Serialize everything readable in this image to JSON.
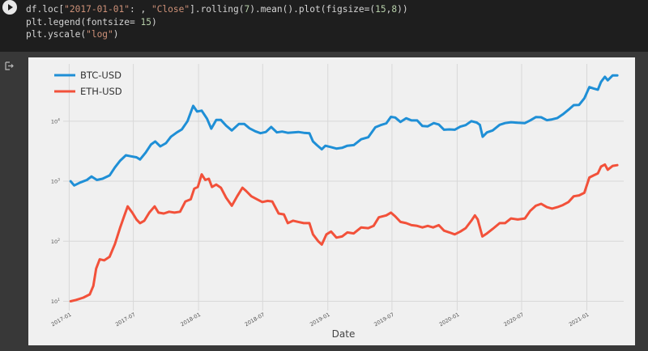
{
  "code_lines": [
    [
      {
        "t": "df.loc["
      },
      {
        "t": "\"2017-01-01\"",
        "c": "tk-str"
      },
      {
        "t": ": , "
      },
      {
        "t": "\"Close\"",
        "c": "tk-str"
      },
      {
        "t": "].rolling("
      },
      {
        "t": "7",
        "c": "tk-num"
      },
      {
        "t": ").mean().plot(figsize=("
      },
      {
        "t": "15",
        "c": "tk-num"
      },
      {
        "t": ","
      },
      {
        "t": "8",
        "c": "tk-num"
      },
      {
        "t": "))"
      }
    ],
    [
      {
        "t": "plt.legend(fontsize= "
      },
      {
        "t": "15",
        "c": "tk-num"
      },
      {
        "t": ")"
      }
    ],
    [
      {
        "t": "plt.yscale("
      },
      {
        "t": "\"log\"",
        "c": "tk-str"
      },
      {
        "t": ")"
      }
    ]
  ],
  "colors": {
    "btc": "#1f8fd6",
    "eth": "#f2513a",
    "grid": "#d8d8d8"
  },
  "icons": {
    "run": "play-circle-icon",
    "output": "output-arrow-icon"
  },
  "chart_data": {
    "type": "line",
    "xlabel": "Date",
    "ylabel": "",
    "yscale": "log",
    "ylim": [
      7,
      90000
    ],
    "xlim": [
      "2016-12-15",
      "2021-04-15"
    ],
    "grid": true,
    "legend_position": "top-left",
    "yticks": [
      {
        "value": 10,
        "label": "10",
        "sup": "1"
      },
      {
        "value": 100,
        "label": "10",
        "sup": "2"
      },
      {
        "value": 1000,
        "label": "10",
        "sup": "3"
      },
      {
        "value": 10000,
        "label": "10",
        "sup": "4"
      }
    ],
    "xticks": [
      "2017-01",
      "2017-07",
      "2018-01",
      "2018-07",
      "2019-01",
      "2019-07",
      "2020-01",
      "2020-07",
      "2021-01"
    ],
    "series": [
      {
        "name": "BTC-USD",
        "color": "#1f8fd6",
        "points": [
          [
            "2017-01-05",
            1000
          ],
          [
            "2017-01-15",
            850
          ],
          [
            "2017-02-01",
            950
          ],
          [
            "2017-02-20",
            1050
          ],
          [
            "2017-03-05",
            1200
          ],
          [
            "2017-03-20",
            1050
          ],
          [
            "2017-04-05",
            1100
          ],
          [
            "2017-04-25",
            1250
          ],
          [
            "2017-05-10",
            1700
          ],
          [
            "2017-05-25",
            2200
          ],
          [
            "2017-06-10",
            2700
          ],
          [
            "2017-06-25",
            2600
          ],
          [
            "2017-07-10",
            2500
          ],
          [
            "2017-07-20",
            2300
          ],
          [
            "2017-08-05",
            3000
          ],
          [
            "2017-08-20",
            4100
          ],
          [
            "2017-09-01",
            4600
          ],
          [
            "2017-09-15",
            3800
          ],
          [
            "2017-10-01",
            4300
          ],
          [
            "2017-10-15",
            5500
          ],
          [
            "2017-11-01",
            6500
          ],
          [
            "2017-11-15",
            7300
          ],
          [
            "2017-12-01",
            10000
          ],
          [
            "2017-12-17",
            18000
          ],
          [
            "2017-12-28",
            14500
          ],
          [
            "2018-01-10",
            15000
          ],
          [
            "2018-01-25",
            11000
          ],
          [
            "2018-02-06",
            7500
          ],
          [
            "2018-02-20",
            10500
          ],
          [
            "2018-03-05",
            10500
          ],
          [
            "2018-03-20",
            8400
          ],
          [
            "2018-04-05",
            7000
          ],
          [
            "2018-04-25",
            9000
          ],
          [
            "2018-05-10",
            9000
          ],
          [
            "2018-05-25",
            7600
          ],
          [
            "2018-06-10",
            6800
          ],
          [
            "2018-06-25",
            6300
          ],
          [
            "2018-07-10",
            6600
          ],
          [
            "2018-07-25",
            8000
          ],
          [
            "2018-08-10",
            6500
          ],
          [
            "2018-08-25",
            6700
          ],
          [
            "2018-09-10",
            6400
          ],
          [
            "2018-09-25",
            6500
          ],
          [
            "2018-10-10",
            6600
          ],
          [
            "2018-10-25",
            6400
          ],
          [
            "2018-11-10",
            6300
          ],
          [
            "2018-11-20",
            4600
          ],
          [
            "2018-12-01",
            4000
          ],
          [
            "2018-12-15",
            3400
          ],
          [
            "2018-12-25",
            3900
          ],
          [
            "2019-01-10",
            3700
          ],
          [
            "2019-01-25",
            3500
          ],
          [
            "2019-02-10",
            3600
          ],
          [
            "2019-02-25",
            3900
          ],
          [
            "2019-03-15",
            4000
          ],
          [
            "2019-04-05",
            5000
          ],
          [
            "2019-04-25",
            5400
          ],
          [
            "2019-05-15",
            7900
          ],
          [
            "2019-05-30",
            8600
          ],
          [
            "2019-06-15",
            9200
          ],
          [
            "2019-06-28",
            11800
          ],
          [
            "2019-07-10",
            11500
          ],
          [
            "2019-07-25",
            9700
          ],
          [
            "2019-08-10",
            11200
          ],
          [
            "2019-08-25",
            10300
          ],
          [
            "2019-09-10",
            10300
          ],
          [
            "2019-09-25",
            8300
          ],
          [
            "2019-10-10",
            8200
          ],
          [
            "2019-10-27",
            9300
          ],
          [
            "2019-11-10",
            8800
          ],
          [
            "2019-11-25",
            7200
          ],
          [
            "2019-12-10",
            7300
          ],
          [
            "2019-12-25",
            7200
          ],
          [
            "2020-01-10",
            8100
          ],
          [
            "2020-01-25",
            8600
          ],
          [
            "2020-02-10",
            10000
          ],
          [
            "2020-02-25",
            9500
          ],
          [
            "2020-03-05",
            8700
          ],
          [
            "2020-03-13",
            5500
          ],
          [
            "2020-03-25",
            6500
          ],
          [
            "2020-04-10",
            7000
          ],
          [
            "2020-04-30",
            8700
          ],
          [
            "2020-05-15",
            9300
          ],
          [
            "2020-06-01",
            9600
          ],
          [
            "2020-06-20",
            9400
          ],
          [
            "2020-07-10",
            9300
          ],
          [
            "2020-07-25",
            10300
          ],
          [
            "2020-08-10",
            11700
          ],
          [
            "2020-08-25",
            11600
          ],
          [
            "2020-09-10",
            10400
          ],
          [
            "2020-09-25",
            10700
          ],
          [
            "2020-10-10",
            11300
          ],
          [
            "2020-10-25",
            13000
          ],
          [
            "2020-11-10",
            15500
          ],
          [
            "2020-11-25",
            18500
          ],
          [
            "2020-12-10",
            18700
          ],
          [
            "2020-12-25",
            24000
          ],
          [
            "2021-01-08",
            37000
          ],
          [
            "2021-01-20",
            35000
          ],
          [
            "2021-02-01",
            33500
          ],
          [
            "2021-02-10",
            45000
          ],
          [
            "2021-02-21",
            55000
          ],
          [
            "2021-03-01",
            48000
          ],
          [
            "2021-03-15",
            58000
          ],
          [
            "2021-03-28",
            58000
          ]
        ]
      },
      {
        "name": "ETH-USD",
        "color": "#f2513a",
        "points": [
          [
            "2017-01-05",
            10
          ],
          [
            "2017-01-20",
            10.5
          ],
          [
            "2017-02-10",
            11.5
          ],
          [
            "2017-02-28",
            13
          ],
          [
            "2017-03-10",
            18
          ],
          [
            "2017-03-18",
            35
          ],
          [
            "2017-03-28",
            50
          ],
          [
            "2017-04-10",
            48
          ],
          [
            "2017-04-25",
            55
          ],
          [
            "2017-05-10",
            90
          ],
          [
            "2017-05-25",
            170
          ],
          [
            "2017-06-05",
            260
          ],
          [
            "2017-06-15",
            380
          ],
          [
            "2017-06-28",
            300
          ],
          [
            "2017-07-10",
            230
          ],
          [
            "2017-07-20",
            200
          ],
          [
            "2017-08-01",
            220
          ],
          [
            "2017-08-15",
            300
          ],
          [
            "2017-08-30",
            380
          ],
          [
            "2017-09-10",
            300
          ],
          [
            "2017-09-25",
            290
          ],
          [
            "2017-10-10",
            310
          ],
          [
            "2017-10-25",
            300
          ],
          [
            "2017-11-10",
            310
          ],
          [
            "2017-11-25",
            460
          ],
          [
            "2017-12-10",
            500
          ],
          [
            "2017-12-20",
            750
          ],
          [
            "2017-12-30",
            800
          ],
          [
            "2018-01-10",
            1300
          ],
          [
            "2018-01-20",
            1050
          ],
          [
            "2018-01-30",
            1100
          ],
          [
            "2018-02-08",
            800
          ],
          [
            "2018-02-20",
            880
          ],
          [
            "2018-03-05",
            780
          ],
          [
            "2018-03-20",
            530
          ],
          [
            "2018-04-05",
            390
          ],
          [
            "2018-04-20",
            560
          ],
          [
            "2018-05-05",
            780
          ],
          [
            "2018-05-15",
            690
          ],
          [
            "2018-05-30",
            560
          ],
          [
            "2018-06-15",
            500
          ],
          [
            "2018-06-30",
            450
          ],
          [
            "2018-07-15",
            470
          ],
          [
            "2018-07-28",
            460
          ],
          [
            "2018-08-15",
            290
          ],
          [
            "2018-08-30",
            280
          ],
          [
            "2018-09-10",
            200
          ],
          [
            "2018-09-25",
            220
          ],
          [
            "2018-10-10",
            210
          ],
          [
            "2018-10-25",
            200
          ],
          [
            "2018-11-10",
            200
          ],
          [
            "2018-11-20",
            130
          ],
          [
            "2018-12-05",
            100
          ],
          [
            "2018-12-15",
            88
          ],
          [
            "2018-12-28",
            130
          ],
          [
            "2019-01-10",
            145
          ],
          [
            "2019-01-25",
            115
          ],
          [
            "2019-02-10",
            120
          ],
          [
            "2019-02-25",
            140
          ],
          [
            "2019-03-15",
            135
          ],
          [
            "2019-04-05",
            170
          ],
          [
            "2019-04-25",
            165
          ],
          [
            "2019-05-10",
            180
          ],
          [
            "2019-05-25",
            250
          ],
          [
            "2019-06-15",
            270
          ],
          [
            "2019-06-28",
            300
          ],
          [
            "2019-07-10",
            260
          ],
          [
            "2019-07-25",
            210
          ],
          [
            "2019-08-10",
            200
          ],
          [
            "2019-08-25",
            185
          ],
          [
            "2019-09-10",
            180
          ],
          [
            "2019-09-25",
            170
          ],
          [
            "2019-10-10",
            180
          ],
          [
            "2019-10-25",
            170
          ],
          [
            "2019-11-10",
            185
          ],
          [
            "2019-11-25",
            150
          ],
          [
            "2019-12-10",
            140
          ],
          [
            "2019-12-25",
            130
          ],
          [
            "2020-01-10",
            145
          ],
          [
            "2020-01-25",
            165
          ],
          [
            "2020-02-10",
            220
          ],
          [
            "2020-02-20",
            270
          ],
          [
            "2020-02-28",
            230
          ],
          [
            "2020-03-12",
            120
          ],
          [
            "2020-03-25",
            135
          ],
          [
            "2020-04-10",
            160
          ],
          [
            "2020-04-30",
            200
          ],
          [
            "2020-05-15",
            200
          ],
          [
            "2020-06-01",
            240
          ],
          [
            "2020-06-20",
            230
          ],
          [
            "2020-07-10",
            240
          ],
          [
            "2020-07-25",
            320
          ],
          [
            "2020-08-10",
            390
          ],
          [
            "2020-08-25",
            420
          ],
          [
            "2020-09-10",
            370
          ],
          [
            "2020-09-25",
            350
          ],
          [
            "2020-10-10",
            370
          ],
          [
            "2020-10-25",
            400
          ],
          [
            "2020-11-10",
            450
          ],
          [
            "2020-11-25",
            560
          ],
          [
            "2020-12-10",
            580
          ],
          [
            "2020-12-25",
            640
          ],
          [
            "2021-01-08",
            1150
          ],
          [
            "2021-01-20",
            1250
          ],
          [
            "2021-02-01",
            1350
          ],
          [
            "2021-02-10",
            1750
          ],
          [
            "2021-02-21",
            1900
          ],
          [
            "2021-03-01",
            1550
          ],
          [
            "2021-03-15",
            1800
          ],
          [
            "2021-03-28",
            1850
          ]
        ]
      }
    ]
  }
}
